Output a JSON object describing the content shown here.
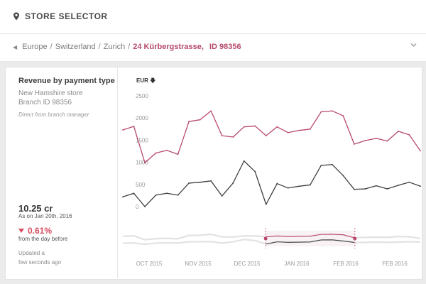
{
  "header": {
    "title": "STORE SELECTOR",
    "icon": "map-pin-icon"
  },
  "breadcrumb": {
    "items": [
      "Europe",
      "Switzerland",
      "Zurich"
    ],
    "separator": "/",
    "active": "24 Kürbergstrasse,",
    "active_id": "ID 98356"
  },
  "panel": {
    "title": "Revenue by payment type",
    "store": "New Hamshire store",
    "branch": "Branch ID 98356",
    "note": "Direct from branch manager",
    "value": "10.25 cr",
    "as_of": "As on Jan 20th, 2016",
    "change": "0.61%",
    "change_note": "from the day before",
    "updated_line1": "Updated a",
    "updated_line2": "few seconds ago"
  },
  "colors": {
    "accent": "#b54a6a",
    "negative": "#d84c5f",
    "series_dark": "#3f3f3f",
    "series_accent": "#b8496b"
  },
  "chart_data": {
    "type": "line",
    "ylabel": "EUR",
    "ylim": [
      0,
      2500
    ],
    "yticks": [
      "2500",
      "2000",
      "1500",
      "1000",
      "500",
      "0"
    ],
    "x_tick_labels": [
      "OCT 2015",
      "NOV 2015",
      "DEC 2015",
      "JAN 2016",
      "FEB 2016",
      "FEB 2016"
    ],
    "series": [
      {
        "color": "#b8496b",
        "values": [
          1730,
          1810,
          990,
          1210,
          1270,
          1180,
          1920,
          1960,
          2160,
          1600,
          1570,
          1800,
          1820,
          1600,
          1800,
          1670,
          1720,
          1750,
          2140,
          2160,
          2050,
          1410,
          1490,
          1540,
          1480,
          1700,
          1620,
          1260
        ]
      },
      {
        "color": "#3f3f3f",
        "values": [
          220,
          300,
          0,
          260,
          300,
          260,
          530,
          550,
          580,
          240,
          530,
          1030,
          790,
          50,
          520,
          420,
          460,
          490,
          930,
          950,
          700,
          390,
          400,
          470,
          400,
          480,
          550,
          460
        ]
      }
    ]
  },
  "navigator": {
    "range_start": 0.48,
    "range_end": 0.78
  }
}
